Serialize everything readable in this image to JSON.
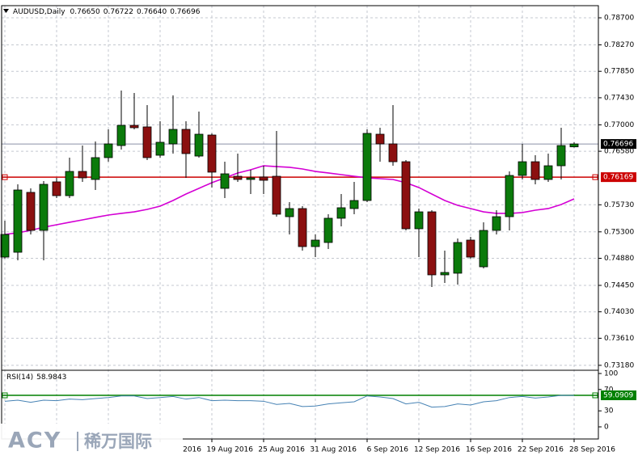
{
  "chart_data": [
    {
      "type": "candlestick",
      "title": "AUDUSD,Daily",
      "header_labels": [
        "0.76650",
        "0.76722",
        "0.76640",
        "0.76696"
      ],
      "categories": [
        null,
        null,
        null,
        null,
        null,
        null,
        null,
        null,
        null,
        null,
        null,
        null,
        "2016",
        null,
        null,
        null,
        "19 Aug 2016",
        null,
        null,
        null,
        "25 Aug 2016",
        null,
        null,
        null,
        "31 Aug 2016",
        null,
        null,
        null,
        "6 Sep 2016",
        null,
        null,
        null,
        "12 Sep 2016",
        null,
        null,
        null,
        "16 Sep 2016",
        null,
        null,
        null,
        "22 Sep 2016",
        null,
        null,
        null,
        "28 Sep 2016"
      ],
      "open": [
        0.74899,
        0.74976,
        0.75927,
        0.75323,
        0.76094,
        0.75875,
        0.7626,
        0.76132,
        0.76479,
        0.76671,
        0.76992,
        0.76967,
        0.76517,
        0.76697,
        0.76928,
        0.76504,
        0.76838,
        0.75991,
        0.76183,
        0.76132,
        0.76171,
        0.76183,
        0.75541,
        0.7567,
        0.75066,
        0.75131,
        0.75516,
        0.7567,
        0.75798,
        0.76851,
        0.76697,
        0.76414,
        0.75349,
        0.75618,
        0.74617,
        0.74643,
        0.75169,
        0.74745,
        0.75323,
        0.75541,
        0.76196,
        0.76414,
        0.76132,
        0.7635,
        0.7665
      ],
      "high": [
        0.75477,
        0.76055,
        0.75991,
        0.76106,
        0.76158,
        0.76479,
        0.76671,
        0.76735,
        0.76928,
        0.77544,
        0.77506,
        0.77313,
        0.77057,
        0.77467,
        0.77057,
        0.77211,
        0.76864,
        0.76414,
        0.76543,
        0.76286,
        0.7635,
        0.76902,
        0.75773,
        0.75708,
        0.75259,
        0.7558,
        0.75901,
        0.76094,
        0.76928,
        0.76954,
        0.77313,
        0.7644,
        0.7567,
        0.75644,
        0.75002,
        0.75195,
        0.7522,
        0.75452,
        0.75644,
        0.7626,
        0.76697,
        0.76517,
        0.76543,
        0.76954,
        0.76722
      ],
      "low": [
        0.74874,
        0.74848,
        0.75259,
        0.74848,
        0.75837,
        0.75837,
        0.76094,
        0.75965,
        0.76414,
        0.76607,
        0.76928,
        0.7644,
        0.76479,
        0.76543,
        0.76158,
        0.76479,
        0.76004,
        0.75837,
        0.76094,
        0.75901,
        0.75901,
        0.75541,
        0.75259,
        0.75002,
        0.74899,
        0.75028,
        0.75387,
        0.7558,
        0.75773,
        0.76414,
        0.7635,
        0.75323,
        0.74899,
        0.74424,
        0.74489,
        0.74463,
        0.74874,
        0.7472,
        0.75259,
        0.75323,
        0.76132,
        0.76055,
        0.76094,
        0.76132,
        0.7664
      ],
      "close": [
        0.75259,
        0.75965,
        0.75323,
        0.76055,
        0.75875,
        0.7626,
        0.76158,
        0.76479,
        0.76697,
        0.76992,
        0.76954,
        0.76479,
        0.76723,
        0.76928,
        0.76543,
        0.76851,
        0.76248,
        0.76222,
        0.76132,
        0.76158,
        0.76119,
        0.7558,
        0.7567,
        0.75066,
        0.75169,
        0.75516,
        0.75683,
        0.75798,
        0.76864,
        0.76697,
        0.76414,
        0.75349,
        0.75618,
        0.74617,
        0.74655,
        0.75131,
        0.74899,
        0.75323,
        0.75541,
        0.76196,
        0.76414,
        0.76132,
        0.7635,
        0.76671,
        0.76696
      ],
      "up_color": "#0b7a0b",
      "down_color": "#8b1010",
      "series": [
        {
          "color": "#d400d4",
          "values": [
            0.75259,
            0.75285,
            0.75323,
            0.75374,
            0.75413,
            0.75452,
            0.7549,
            0.75529,
            0.75567,
            0.75593,
            0.75618,
            0.75657,
            0.75708,
            0.75798,
            0.75901,
            0.75991,
            0.76081,
            0.76158,
            0.76235,
            0.76286,
            0.7635,
            0.76337,
            0.76325,
            0.76299,
            0.7626,
            0.76235,
            0.76209,
            0.76183,
            0.76158,
            0.76145,
            0.76132,
            0.76081,
            0.76004,
            0.75901,
            0.75798,
            0.75721,
            0.7567,
            0.75618,
            0.75593,
            0.75593,
            0.75606,
            0.75644,
            0.7567,
            0.75734,
            0.75824
          ]
        }
      ],
      "ylim": [
        0.7314,
        0.7888
      ],
      "yticks": [
        {
          "value": 0.787,
          "label": "0.78700"
        },
        {
          "value": 0.7827,
          "label": "0.78270"
        },
        {
          "value": 0.7785,
          "label": "0.77850"
        },
        {
          "value": 0.7743,
          "label": "0.77430"
        },
        {
          "value": 0.77,
          "label": "0.77000"
        },
        {
          "value": 0.7658,
          "label": "0.76580"
        },
        {
          "value": 0.7573,
          "label": "0.75730"
        },
        {
          "value": 0.753,
          "label": "0.75300"
        },
        {
          "value": 0.7488,
          "label": "0.74880"
        },
        {
          "value": 0.7445,
          "label": "0.74450"
        },
        {
          "value": 0.7403,
          "label": "0.74030"
        },
        {
          "value": 0.7361,
          "label": "0.73610"
        },
        {
          "value": 0.7318,
          "label": "0.73180"
        }
      ],
      "grid": true,
      "hlines": [
        {
          "value": 0.76696,
          "label": "0.76696",
          "color": "#000000",
          "line_color": "#8a90a8"
        },
        {
          "value": 0.76169,
          "label": "0.76169",
          "color": "#cc0000",
          "line_color": "#cc0000"
        }
      ]
    },
    {
      "type": "line",
      "title": "RSI(14)",
      "current": 58.9843,
      "color": "#4682b4",
      "values": [
        48,
        50,
        46,
        50,
        49,
        52,
        51,
        53,
        55,
        58,
        58,
        53,
        55,
        57,
        52,
        55,
        49,
        50,
        49,
        49,
        48,
        42,
        44,
        38,
        39,
        43,
        45,
        47,
        58,
        56,
        53,
        43,
        46,
        37,
        38,
        43,
        41,
        47,
        49,
        55,
        57,
        54,
        56,
        59,
        58.98
      ],
      "ylim": [
        0,
        100
      ],
      "yticks": [
        100,
        70,
        30,
        0
      ],
      "level": {
        "value": 59.0909,
        "color": "#008000"
      }
    }
  ],
  "watermark": {
    "brand": "ACY",
    "name": "稀万国际"
  }
}
